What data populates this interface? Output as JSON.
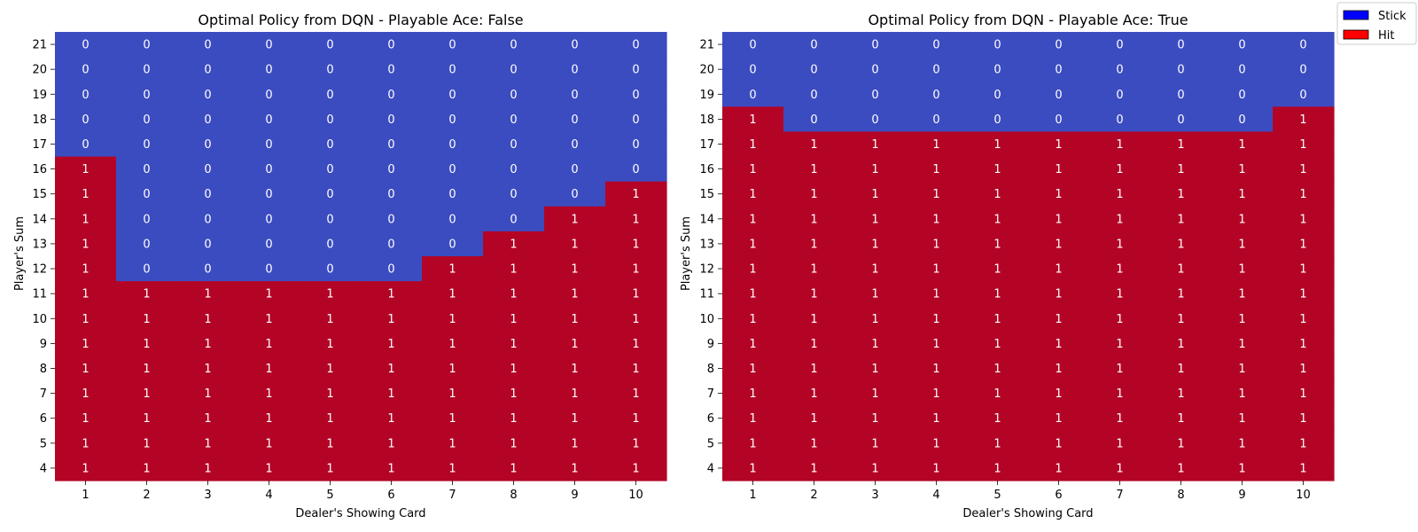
{
  "legend": {
    "items": [
      {
        "label": "Stick",
        "color": "#0000ff"
      },
      {
        "label": "Hit",
        "color": "#ff0000"
      }
    ]
  },
  "colors": {
    "stick_cell": "#3b4cc0",
    "hit_cell": "#b40426"
  },
  "chart_data": [
    {
      "type": "heatmap",
      "title": "Optimal Policy from DQN - Playable Ace: False",
      "xlabel": "Dealer's Showing Card",
      "ylabel": "Player's Sum",
      "x_ticks": [
        "1",
        "2",
        "3",
        "4",
        "5",
        "6",
        "7",
        "8",
        "9",
        "10"
      ],
      "y_ticks": [
        "21",
        "20",
        "19",
        "18",
        "17",
        "16",
        "15",
        "14",
        "13",
        "12",
        "11",
        "10",
        "9",
        "8",
        "7",
        "6",
        "5",
        "4"
      ],
      "values": [
        [
          0,
          0,
          0,
          0,
          0,
          0,
          0,
          0,
          0,
          0
        ],
        [
          0,
          0,
          0,
          0,
          0,
          0,
          0,
          0,
          0,
          0
        ],
        [
          0,
          0,
          0,
          0,
          0,
          0,
          0,
          0,
          0,
          0
        ],
        [
          0,
          0,
          0,
          0,
          0,
          0,
          0,
          0,
          0,
          0
        ],
        [
          0,
          0,
          0,
          0,
          0,
          0,
          0,
          0,
          0,
          0
        ],
        [
          1,
          0,
          0,
          0,
          0,
          0,
          0,
          0,
          0,
          0
        ],
        [
          1,
          0,
          0,
          0,
          0,
          0,
          0,
          0,
          0,
          1
        ],
        [
          1,
          0,
          0,
          0,
          0,
          0,
          0,
          0,
          1,
          1
        ],
        [
          1,
          0,
          0,
          0,
          0,
          0,
          0,
          1,
          1,
          1
        ],
        [
          1,
          0,
          0,
          0,
          0,
          0,
          1,
          1,
          1,
          1
        ],
        [
          1,
          1,
          1,
          1,
          1,
          1,
          1,
          1,
          1,
          1
        ],
        [
          1,
          1,
          1,
          1,
          1,
          1,
          1,
          1,
          1,
          1
        ],
        [
          1,
          1,
          1,
          1,
          1,
          1,
          1,
          1,
          1,
          1
        ],
        [
          1,
          1,
          1,
          1,
          1,
          1,
          1,
          1,
          1,
          1
        ],
        [
          1,
          1,
          1,
          1,
          1,
          1,
          1,
          1,
          1,
          1
        ],
        [
          1,
          1,
          1,
          1,
          1,
          1,
          1,
          1,
          1,
          1
        ],
        [
          1,
          1,
          1,
          1,
          1,
          1,
          1,
          1,
          1,
          1
        ],
        [
          1,
          1,
          1,
          1,
          1,
          1,
          1,
          1,
          1,
          1
        ]
      ]
    },
    {
      "type": "heatmap",
      "title": "Optimal Policy from DQN - Playable Ace: True",
      "xlabel": "Dealer's Showing Card",
      "ylabel": "Player's Sum",
      "x_ticks": [
        "1",
        "2",
        "3",
        "4",
        "5",
        "6",
        "7",
        "8",
        "9",
        "10"
      ],
      "y_ticks": [
        "21",
        "20",
        "19",
        "18",
        "17",
        "16",
        "15",
        "14",
        "13",
        "12",
        "11",
        "10",
        "9",
        "8",
        "7",
        "6",
        "5",
        "4"
      ],
      "values": [
        [
          0,
          0,
          0,
          0,
          0,
          0,
          0,
          0,
          0,
          0
        ],
        [
          0,
          0,
          0,
          0,
          0,
          0,
          0,
          0,
          0,
          0
        ],
        [
          0,
          0,
          0,
          0,
          0,
          0,
          0,
          0,
          0,
          0
        ],
        [
          1,
          0,
          0,
          0,
          0,
          0,
          0,
          0,
          0,
          1
        ],
        [
          1,
          1,
          1,
          1,
          1,
          1,
          1,
          1,
          1,
          1
        ],
        [
          1,
          1,
          1,
          1,
          1,
          1,
          1,
          1,
          1,
          1
        ],
        [
          1,
          1,
          1,
          1,
          1,
          1,
          1,
          1,
          1,
          1
        ],
        [
          1,
          1,
          1,
          1,
          1,
          1,
          1,
          1,
          1,
          1
        ],
        [
          1,
          1,
          1,
          1,
          1,
          1,
          1,
          1,
          1,
          1
        ],
        [
          1,
          1,
          1,
          1,
          1,
          1,
          1,
          1,
          1,
          1
        ],
        [
          1,
          1,
          1,
          1,
          1,
          1,
          1,
          1,
          1,
          1
        ],
        [
          1,
          1,
          1,
          1,
          1,
          1,
          1,
          1,
          1,
          1
        ],
        [
          1,
          1,
          1,
          1,
          1,
          1,
          1,
          1,
          1,
          1
        ],
        [
          1,
          1,
          1,
          1,
          1,
          1,
          1,
          1,
          1,
          1
        ],
        [
          1,
          1,
          1,
          1,
          1,
          1,
          1,
          1,
          1,
          1
        ],
        [
          1,
          1,
          1,
          1,
          1,
          1,
          1,
          1,
          1,
          1
        ],
        [
          1,
          1,
          1,
          1,
          1,
          1,
          1,
          1,
          1,
          1
        ],
        [
          1,
          1,
          1,
          1,
          1,
          1,
          1,
          1,
          1,
          1
        ]
      ]
    }
  ]
}
